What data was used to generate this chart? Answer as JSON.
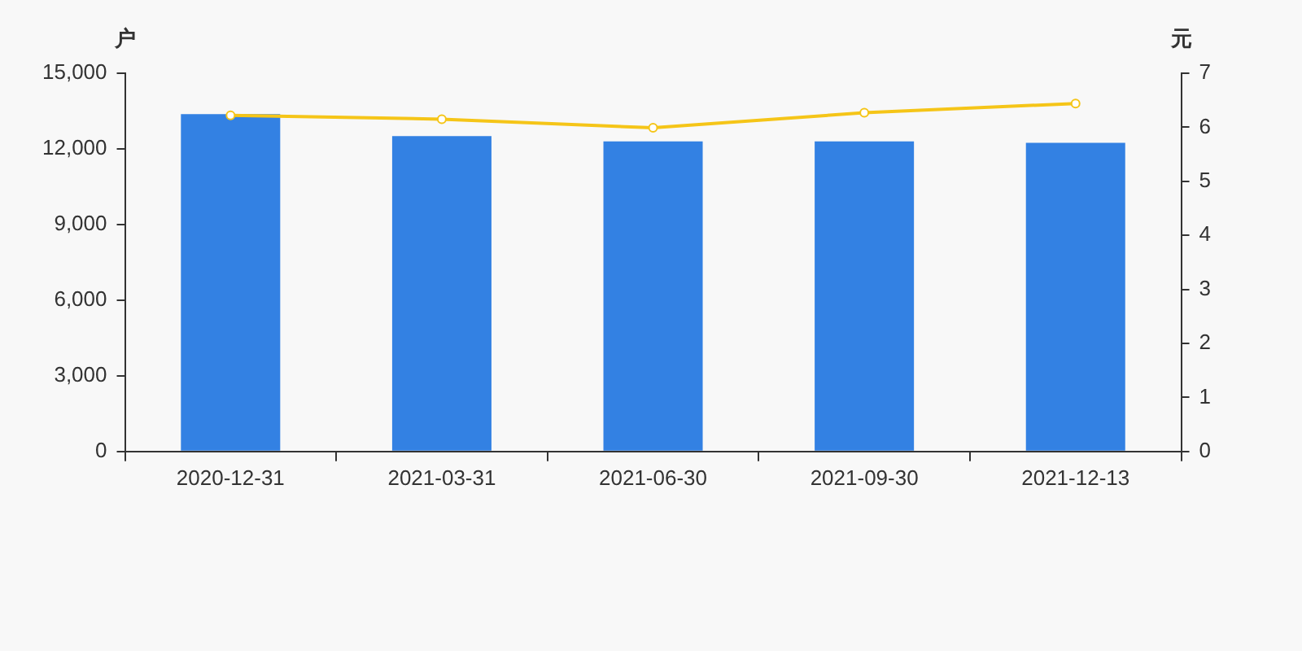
{
  "chart_data": {
    "type": "bar",
    "ylabel": "户",
    "y2label": "元",
    "categories": [
      "2020-12-31",
      "2021-03-31",
      "2021-06-30",
      "2021-09-30",
      "2021-12-13"
    ],
    "series": [
      {
        "color": "#3381e3",
        "values": [
          13380,
          12510,
          12300,
          12300,
          12240
        ]
      },
      {
        "type": "line",
        "axis": "y2",
        "color": "#f5c518",
        "marker": "circle",
        "values": [
          6.22,
          6.15,
          5.99,
          6.27,
          6.44
        ]
      }
    ],
    "ylim": [
      0,
      15000
    ],
    "yticks": [
      0,
      {
        "value": 3000,
        "label": "3,000"
      },
      {
        "value": 6000,
        "label": "6,000"
      },
      {
        "value": 9000,
        "label": "9,000"
      },
      {
        "value": 12000,
        "label": "12,000"
      },
      {
        "value": 15000,
        "label": "15,000"
      }
    ],
    "y2lim": [
      0,
      7
    ],
    "y2ticks": [
      0,
      1,
      2,
      3,
      4,
      5,
      6,
      7
    ],
    "grid": false,
    "legend": false
  }
}
